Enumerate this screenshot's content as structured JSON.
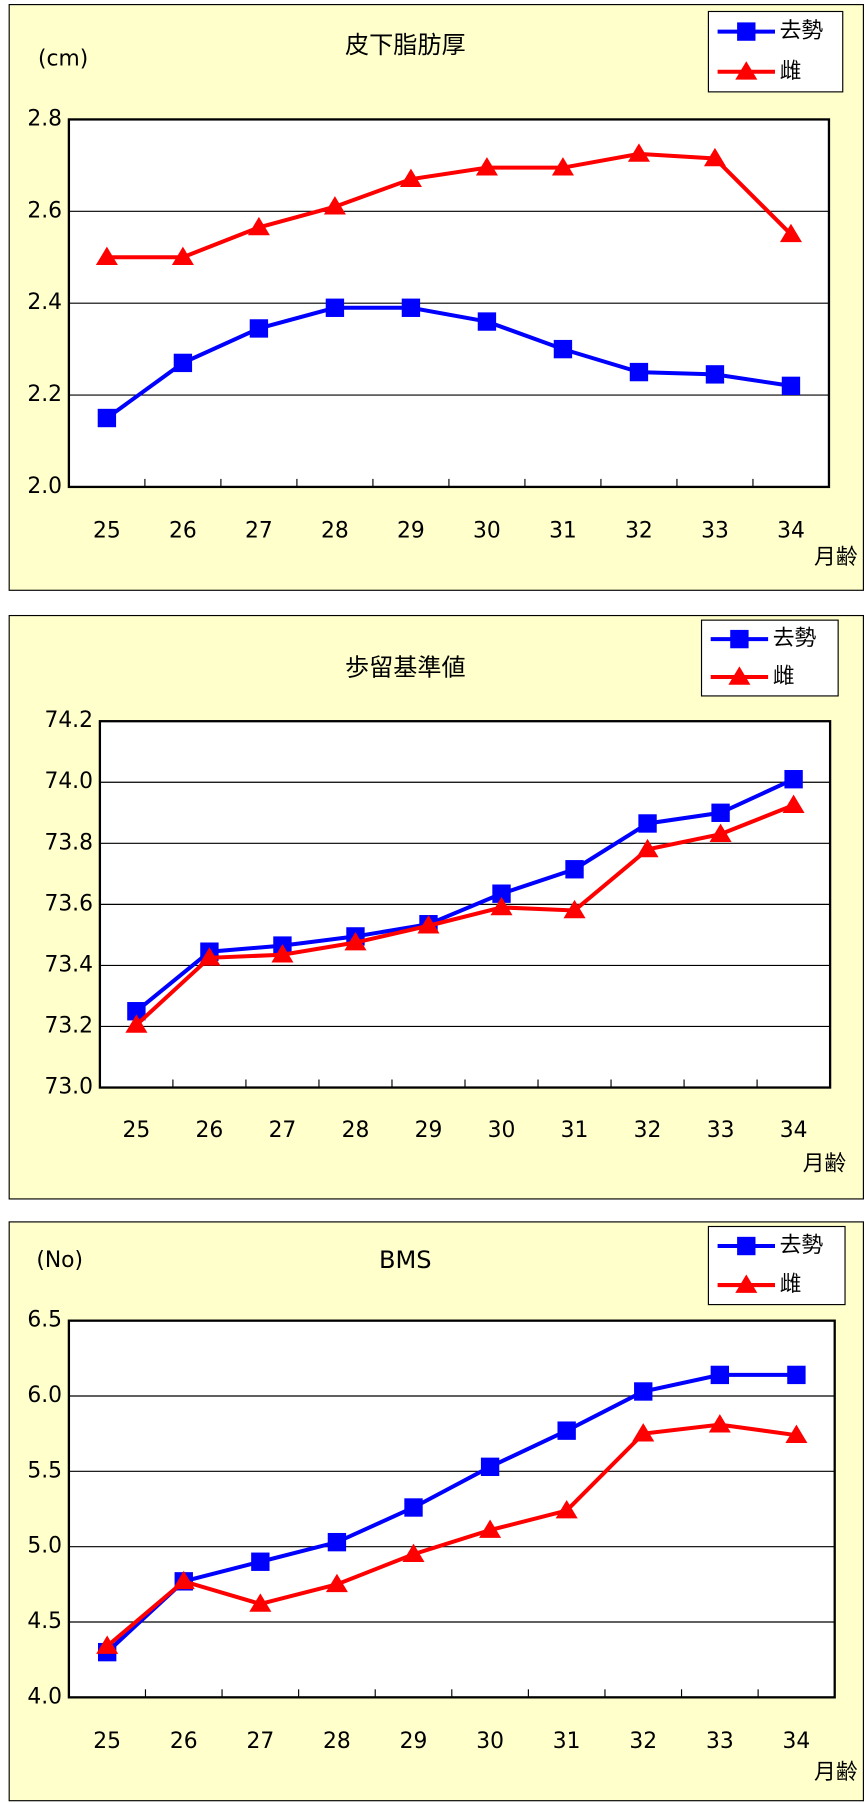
{
  "chart_data": [
    {
      "type": "line",
      "title": "皮下脂肪厚",
      "unit": "(cm)",
      "xlabel": "月齢",
      "categories": [
        "25",
        "26",
        "27",
        "28",
        "29",
        "30",
        "31",
        "32",
        "33",
        "34"
      ],
      "series": [
        {
          "name": "去勢",
          "color": "#0000ff",
          "marker": "square",
          "values": [
            2.15,
            2.27,
            2.345,
            2.39,
            2.39,
            2.36,
            2.3,
            2.25,
            2.245,
            2.22
          ]
        },
        {
          "name": "雌",
          "color": "#ff0000",
          "marker": "triangle",
          "values": [
            2.5,
            2.5,
            2.565,
            2.61,
            2.67,
            2.695,
            2.695,
            2.725,
            2.715,
            2.55
          ]
        }
      ],
      "ylim": [
        2.0,
        2.8
      ],
      "yticks": [
        {
          "value": 2,
          "label": "2.0"
        },
        2.2,
        2.4,
        2.6,
        2.8
      ],
      "grid": true,
      "legend": "upper right"
    },
    {
      "type": "line",
      "title": "歩留基準値",
      "xlabel": "月齢",
      "categories": [
        "25",
        "26",
        "27",
        "28",
        "29",
        "30",
        "31",
        "32",
        "33",
        "34"
      ],
      "series": [
        {
          "name": "去勢",
          "color": "#0000ff",
          "marker": "square",
          "values": [
            73.25,
            73.445,
            73.465,
            73.495,
            73.535,
            73.635,
            73.715,
            73.865,
            73.9,
            74.01
          ]
        },
        {
          "name": "雌",
          "color": "#ff0000",
          "marker": "triangle",
          "values": [
            73.205,
            73.425,
            73.435,
            73.475,
            73.53,
            73.59,
            73.58,
            73.78,
            73.83,
            73.925
          ]
        }
      ],
      "ylim": [
        73.0,
        74.2
      ],
      "yticks": [
        {
          "value": 73,
          "label": "73.0"
        },
        73.2,
        73.4,
        73.6,
        73.8,
        {
          "value": 74,
          "label": "74.0"
        },
        74.2
      ],
      "grid": true,
      "legend": "upper right"
    },
    {
      "type": "line",
      "title": "BMS",
      "unit": "(No)",
      "xlabel": "月齢",
      "categories": [
        "25",
        "26",
        "27",
        "28",
        "29",
        "30",
        "31",
        "32",
        "33",
        "34"
      ],
      "series": [
        {
          "name": "去勢",
          "color": "#0000ff",
          "marker": "square",
          "values": [
            4.3,
            4.77,
            4.9,
            5.03,
            5.26,
            5.53,
            5.77,
            6.03,
            6.14,
            6.14
          ]
        },
        {
          "name": "雌",
          "color": "#ff0000",
          "marker": "triangle",
          "values": [
            4.34,
            4.77,
            4.62,
            4.75,
            4.95,
            5.11,
            5.24,
            5.75,
            5.81,
            5.74
          ]
        }
      ],
      "ylim": [
        4.0,
        6.5
      ],
      "yticks": [
        {
          "value": 4,
          "label": "4.0"
        },
        4.5,
        {
          "value": 5,
          "label": "5.0"
        },
        5.5,
        {
          "value": 6,
          "label": "6.0"
        },
        6.5
      ],
      "grid": true,
      "legend": "upper right"
    }
  ]
}
